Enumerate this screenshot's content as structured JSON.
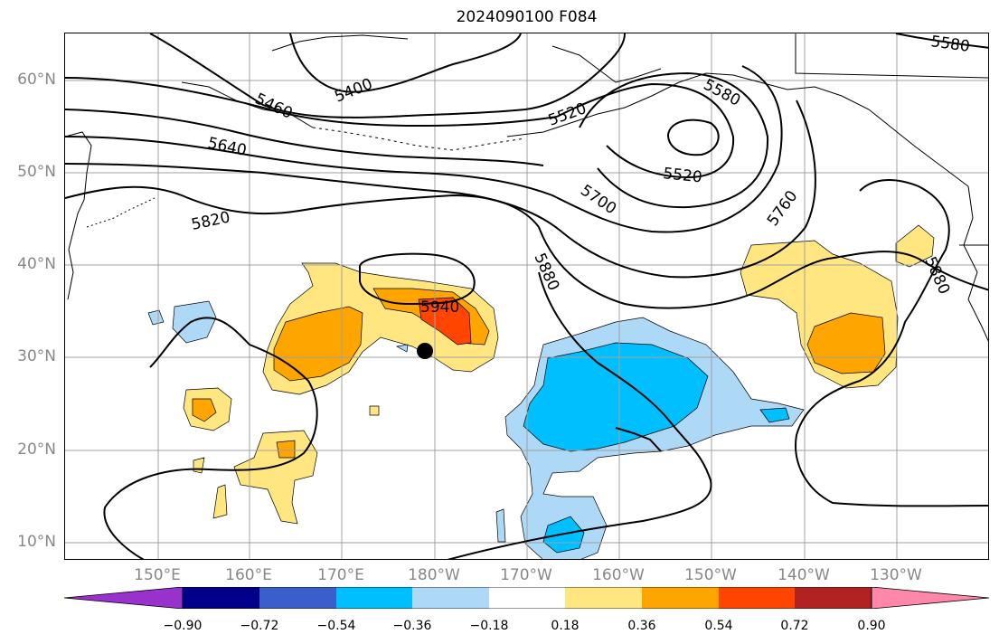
{
  "title": "2024090100 F084",
  "lat_labels": [
    "60°N",
    "50°N",
    "40°N",
    "30°N",
    "20°N",
    "10°N"
  ],
  "lon_labels": [
    "150°E",
    "160°E",
    "170°E",
    "180°W",
    "170°W",
    "160°W",
    "150°W",
    "140°W",
    "130°W"
  ],
  "contour_labels": [
    "5580",
    "5400",
    "5460",
    "5520",
    "5580",
    "5640",
    "5520",
    "5700",
    "5820",
    "5760",
    "5880",
    "5940",
    "5880"
  ],
  "colorbar": {
    "ticks": [
      "−0.90",
      "−0.72",
      "−0.54",
      "−0.36",
      "−0.18",
      "0.18",
      "0.36",
      "0.54",
      "0.72",
      "0.90"
    ],
    "colors": [
      "#9932cc",
      "#00008b",
      "#3a5fcd",
      "#00bfff",
      "#add8f6",
      "#ffffff",
      "#ffe680",
      "#ffa500",
      "#ff4500",
      "#b22222",
      "#ff88aa"
    ]
  },
  "marker": "typhoon-position-dot"
}
